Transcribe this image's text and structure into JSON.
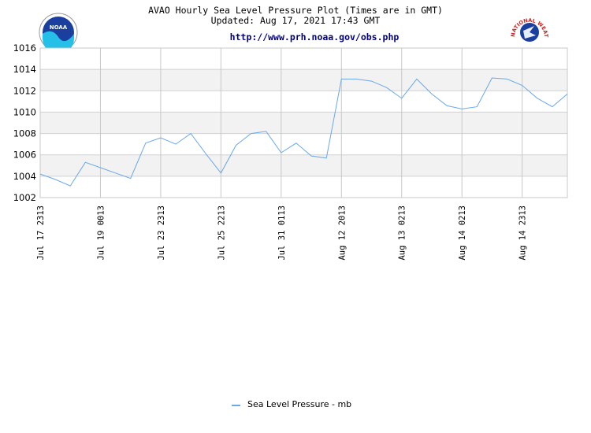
{
  "header": {
    "title": "AVAO Hourly Sea Level Pressure Plot (Times are in GMT)",
    "updated": "Updated: Aug 17, 2021 17:43 GMT",
    "url": "http://www.prh.noaa.gov/obs.php",
    "left_logo": "NOAA",
    "right_logo": "NATIONAL WEATHER SERVICE"
  },
  "colors": {
    "series": "#6aa8e8",
    "title": "#000000",
    "url": "#000080",
    "grid": "#c8c8c8",
    "band": "#f2f2f2"
  },
  "chart_data": {
    "type": "line",
    "title": "AVAO Hourly Sea Level Pressure Plot (Times are in GMT)",
    "ylim": [
      1002,
      1016
    ],
    "yticks": [
      1002,
      1004,
      1006,
      1008,
      1010,
      1012,
      1014,
      1016
    ],
    "grid": true,
    "legend_position": "bottom-center",
    "x_tick_labels": [
      "Jul 17 2313",
      "Jul 19 0013",
      "Jul 23 2313",
      "Jul 25 2213",
      "Jul 31 0113",
      "Aug 12 2013",
      "Aug 13 0213",
      "Aug 14 0213",
      "Aug 14 2313"
    ],
    "x_tick_index": [
      0,
      4,
      8,
      12,
      16,
      20,
      24,
      28,
      32
    ],
    "series": [
      {
        "name": "Sea Level Pressure - mb",
        "values": [
          1004.2,
          1003.7,
          1003.1,
          1005.3,
          1004.8,
          1004.3,
          1003.8,
          1007.1,
          1007.6,
          1007.0,
          1008.0,
          1006.1,
          1004.3,
          1006.9,
          1008.0,
          1008.2,
          1006.2,
          1007.1,
          1005.9,
          1005.7,
          1013.1,
          1013.1,
          1012.9,
          1012.3,
          1011.3,
          1013.1,
          1011.7,
          1010.6,
          1010.3,
          1010.5,
          1013.2,
          1013.1,
          1012.5,
          1011.3,
          1010.5,
          1011.7
        ]
      }
    ]
  }
}
